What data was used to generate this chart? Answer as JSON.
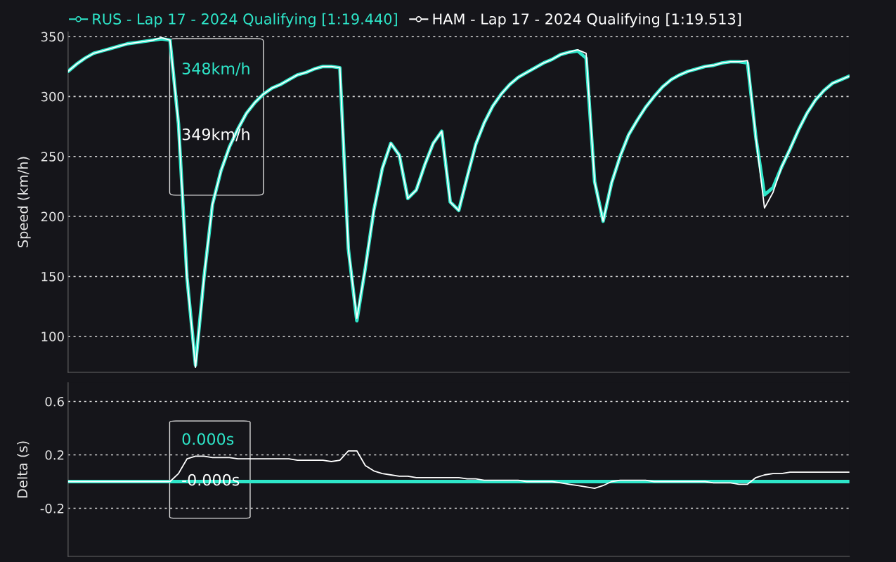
{
  "chart_data": [
    {
      "type": "line",
      "ylabel": "Speed (km/h)",
      "legend": "top",
      "grid": "y",
      "line_style": "solid",
      "categories": [
        null,
        null,
        null,
        null,
        null,
        null,
        null,
        null,
        null,
        null,
        null,
        null,
        null,
        null,
        null,
        null,
        null,
        null,
        null,
        null,
        null,
        null,
        null,
        null,
        null,
        null,
        null,
        null,
        null,
        null,
        null,
        null,
        null,
        null,
        null,
        null,
        null,
        null,
        null,
        null,
        null,
        null,
        null,
        null,
        null,
        null,
        null,
        null,
        null,
        null,
        null,
        null,
        null,
        null,
        null,
        null,
        null,
        null,
        null,
        null,
        null,
        null,
        null,
        null,
        null,
        null,
        null,
        null,
        null,
        null,
        null,
        null,
        null,
        null,
        null,
        null,
        null,
        null,
        null,
        null,
        null,
        null,
        null,
        null,
        null,
        null,
        null,
        null,
        null,
        null,
        null,
        null,
        null
      ],
      "ylim": [
        70,
        354
      ],
      "yticks": [
        100,
        150,
        200,
        250,
        300,
        350
      ],
      "tick_labels": "y",
      "series": [
        {
          "name": "RUS - Lap 17 - 2024 Qualifying [1:19.440]",
          "color": "#2ee6c9",
          "values": [
            321,
            327,
            332,
            336,
            338,
            340,
            342,
            344,
            345,
            346,
            347,
            348,
            347,
            277,
            149,
            76,
            149,
            210,
            238,
            258,
            273,
            286,
            295,
            302,
            307,
            310,
            314,
            318,
            320,
            323,
            325,
            325,
            324,
            173,
            113,
            157,
            205,
            240,
            261,
            251,
            215,
            222,
            243,
            261,
            271,
            212,
            205,
            233,
            260,
            278,
            292,
            302,
            310,
            316,
            320,
            324,
            328,
            331,
            335,
            337,
            338,
            332,
            229,
            196,
            228,
            250,
            268,
            280,
            291,
            300,
            308,
            314,
            318,
            321,
            323,
            325,
            326,
            328,
            329,
            329,
            328,
            265,
            218,
            224,
            241,
            256,
            272,
            286,
            297,
            305,
            311,
            314,
            317
          ]
        },
        {
          "name": "HAM - Lap 17 - 2024 Qualifying [1:19.513]",
          "color": "#ffffff",
          "values": [
            321,
            327,
            332,
            336,
            338,
            340,
            342,
            344,
            345,
            346,
            347,
            349,
            347,
            277,
            149,
            74,
            149,
            210,
            238,
            258,
            273,
            286,
            295,
            302,
            307,
            310,
            314,
            318,
            320,
            323,
            325,
            325,
            324,
            173,
            115,
            157,
            205,
            240,
            261,
            251,
            215,
            222,
            243,
            261,
            271,
            212,
            205,
            233,
            260,
            278,
            292,
            302,
            310,
            316,
            320,
            324,
            328,
            331,
            335,
            337,
            339,
            336,
            229,
            196,
            228,
            250,
            268,
            280,
            291,
            300,
            308,
            314,
            318,
            321,
            323,
            325,
            326,
            328,
            329,
            329,
            330,
            265,
            207,
            220,
            241,
            256,
            272,
            286,
            297,
            305,
            311,
            314,
            317
          ]
        }
      ],
      "annotations": [
        "348km/h",
        "349km/h"
      ]
    },
    {
      "type": "line",
      "ylabel": "Delta (s)",
      "grid": "y",
      "line_style": "solid",
      "categories": [
        null,
        null,
        null,
        null,
        null,
        null,
        null,
        null,
        null,
        null,
        null,
        null,
        null,
        null,
        null,
        null,
        null,
        null,
        null,
        null,
        null,
        null,
        null,
        null,
        null,
        null,
        null,
        null,
        null,
        null,
        null,
        null,
        null,
        null,
        null,
        null,
        null,
        null,
        null,
        null,
        null,
        null,
        null,
        null,
        null,
        null,
        null,
        null,
        null,
        null,
        null,
        null,
        null,
        null,
        null,
        null,
        null,
        null,
        null,
        null,
        null,
        null,
        null,
        null,
        null,
        null,
        null,
        null,
        null,
        null,
        null,
        null,
        null,
        null,
        null,
        null,
        null,
        null,
        null,
        null,
        null,
        null,
        null,
        null,
        null,
        null,
        null,
        null,
        null,
        null,
        null,
        null,
        null
      ],
      "ylim": [
        -0.56,
        0.74
      ],
      "yticks": [
        -0.2,
        0.2,
        0.6
      ],
      "tick_labels": "y",
      "series": [
        {
          "color": "#2ee6c9",
          "values": [
            0,
            0,
            0,
            0,
            0,
            0,
            0,
            0,
            0,
            0,
            0,
            0,
            0,
            0,
            0,
            0,
            0,
            0,
            0,
            0,
            0,
            0,
            0,
            0,
            0,
            0,
            0,
            0,
            0,
            0,
            0,
            0,
            0,
            0,
            0,
            0,
            0,
            0,
            0,
            0,
            0,
            0,
            0,
            0,
            0,
            0,
            0,
            0,
            0,
            0,
            0,
            0,
            0,
            0,
            0,
            0,
            0,
            0,
            0,
            0,
            0,
            0,
            0,
            0,
            0,
            0,
            0,
            0,
            0,
            0,
            0,
            0,
            0,
            0,
            0,
            0,
            0,
            0,
            0,
            0,
            0,
            0,
            0,
            0,
            0,
            0,
            0,
            0,
            0,
            0,
            0,
            0,
            0
          ]
        },
        {
          "color": "#ffffff",
          "values": [
            0,
            0,
            0,
            0,
            0,
            0,
            0,
            0,
            0,
            0,
            0,
            0,
            0,
            0.06,
            0.17,
            0.19,
            0.19,
            0.18,
            0.18,
            0.18,
            0.17,
            0.17,
            0.17,
            0.17,
            0.17,
            0.17,
            0.17,
            0.16,
            0.16,
            0.16,
            0.16,
            0.15,
            0.16,
            0.23,
            0.23,
            0.12,
            0.08,
            0.06,
            0.05,
            0.04,
            0.04,
            0.03,
            0.03,
            0.03,
            0.03,
            0.03,
            0.03,
            0.02,
            0.02,
            0.01,
            0.01,
            0.01,
            0.01,
            0.01,
            0,
            0,
            0,
            0,
            -0.01,
            -0.02,
            -0.03,
            -0.04,
            -0.05,
            -0.03,
            0,
            0.01,
            0.01,
            0.01,
            0.01,
            0,
            0,
            0,
            0,
            0,
            0,
            0,
            -0.01,
            -0.01,
            -0.01,
            -0.02,
            -0.02,
            0.03,
            0.05,
            0.06,
            0.06,
            0.07,
            0.07,
            0.07,
            0.07,
            0.07,
            0.07,
            0.07,
            0.07
          ]
        }
      ],
      "annotations": [
        "0.000s",
        "-0.000s"
      ]
    }
  ]
}
